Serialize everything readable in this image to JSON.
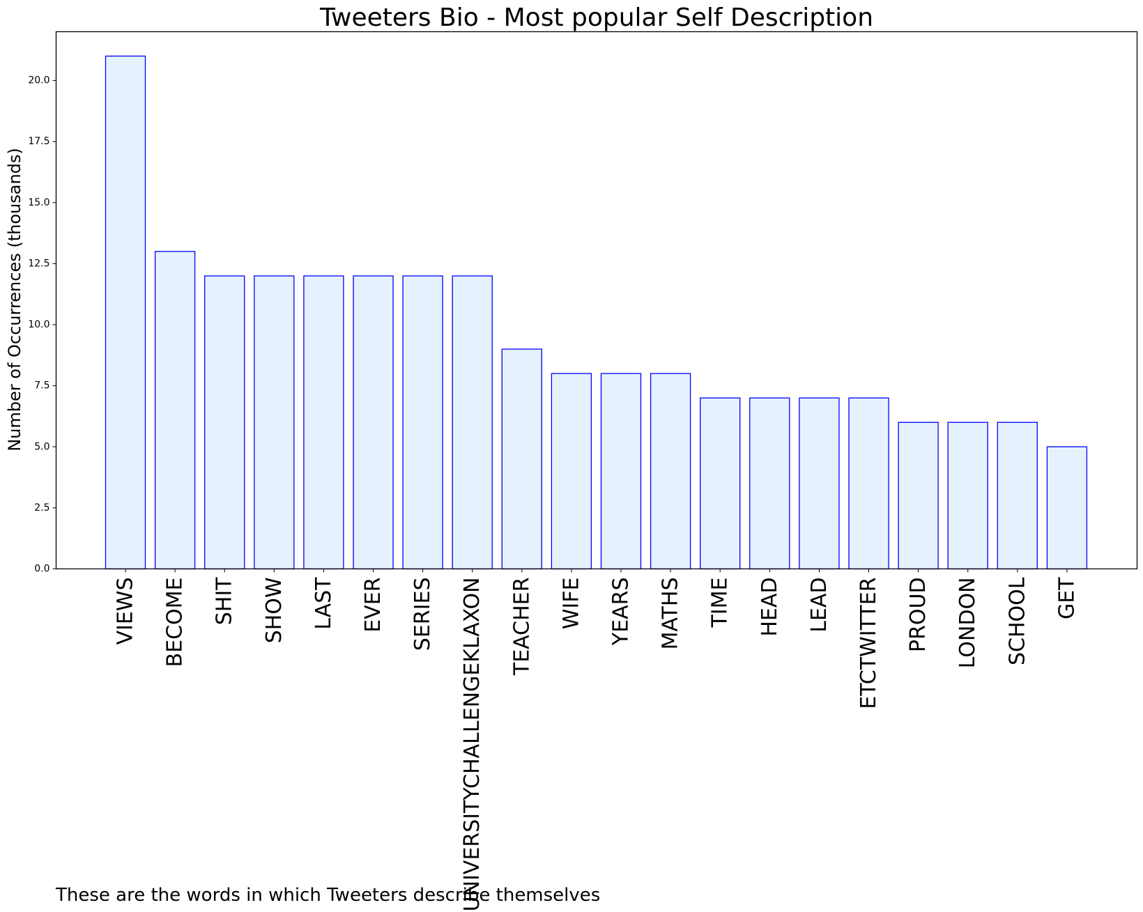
{
  "chart_data": {
    "type": "bar",
    "title": "Tweeters Bio - Most popular Self Description",
    "xlabel": "",
    "ylabel": "Number of Occurrences (thousands)",
    "categories": [
      "VIEWS",
      "BECOME",
      "SHIT",
      "SHOW",
      "LAST",
      "EVER",
      "SERIES",
      "UNIVERSITYCHALLENGEKLAXON",
      "TEACHER",
      "WIFE",
      "YEARS",
      "MATHS",
      "TIME",
      "HEAD",
      "LEAD",
      "ETCTWITTER",
      "PROUD",
      "LONDON",
      "SCHOOL",
      "GET"
    ],
    "values": [
      21,
      13,
      12,
      12,
      12,
      12,
      12,
      12,
      9,
      8,
      8,
      8,
      7,
      7,
      7,
      7,
      6,
      6,
      6,
      5
    ],
    "ylim": [
      0,
      22
    ],
    "yticks": [
      "0.0",
      "2.5",
      "5.0",
      "7.5",
      "10.0",
      "12.5",
      "15.0",
      "17.5",
      "20.0"
    ],
    "grid": false,
    "bar_fill": "#e5f1fd",
    "bar_edge": "#0000ff"
  },
  "caption": "These are the words in which Tweeters describe themselves"
}
